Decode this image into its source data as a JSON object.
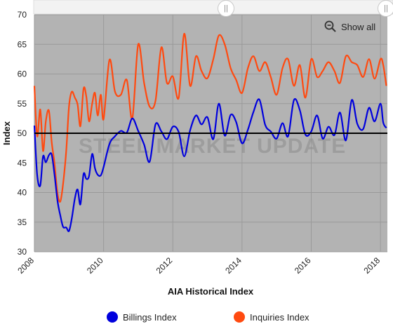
{
  "navigator": {
    "show_all_label": "Show all",
    "handle_glyph": "||"
  },
  "colors": {
    "plot_bg": "#b3b3b3",
    "billings": "#0000dd",
    "inquiries": "#ff4a10",
    "baseline": "#000000"
  },
  "watermark": "STEEL MARKET UPDATE",
  "chart_data": {
    "type": "line",
    "title": "",
    "xlabel": "AIA Historical Index",
    "ylabel": "Index",
    "xlim": [
      2008.0,
      2018.2
    ],
    "ylim": [
      30,
      70
    ],
    "xticks": [
      "2008",
      "2010",
      "2012",
      "2014",
      "2016",
      "2018"
    ],
    "yticks": [
      "30",
      "35",
      "40",
      "45",
      "50",
      "55",
      "60",
      "65",
      "70"
    ],
    "reference_line": 50,
    "grid": true,
    "legend_position": "bottom",
    "series": [
      {
        "name": "Billings Index",
        "color": "#0000dd",
        "x": [
          2008.0,
          2008.08,
          2008.17,
          2008.25,
          2008.33,
          2008.42,
          2008.5,
          2008.58,
          2008.67,
          2008.75,
          2008.83,
          2008.92,
          2009.0,
          2009.08,
          2009.17,
          2009.25,
          2009.33,
          2009.42,
          2009.5,
          2009.58,
          2009.67,
          2009.75,
          2009.83,
          2009.92,
          2010.0,
          2010.17,
          2010.33,
          2010.5,
          2010.67,
          2010.83,
          2011.0,
          2011.17,
          2011.33,
          2011.5,
          2011.67,
          2011.83,
          2012.0,
          2012.17,
          2012.33,
          2012.5,
          2012.67,
          2012.83,
          2013.0,
          2013.17,
          2013.33,
          2013.5,
          2013.67,
          2013.83,
          2014.0,
          2014.17,
          2014.33,
          2014.5,
          2014.67,
          2014.83,
          2015.0,
          2015.17,
          2015.33,
          2015.5,
          2015.67,
          2015.83,
          2016.0,
          2016.17,
          2016.33,
          2016.5,
          2016.67,
          2016.83,
          2017.0,
          2017.17,
          2017.33,
          2017.5,
          2017.67,
          2017.83,
          2018.0,
          2018.08,
          2018.17
        ],
        "values": [
          51.3,
          43.0,
          41.2,
          46.1,
          45.1,
          46.3,
          46.4,
          43.1,
          38.5,
          36.1,
          34.2,
          34.1,
          33.5,
          35.6,
          39.0,
          40.5,
          38.0,
          43.1,
          42.3,
          42.8,
          46.5,
          44.1,
          43.0,
          42.9,
          44.3,
          48.2,
          49.5,
          50.4,
          50.1,
          52.5,
          50.4,
          48.1,
          45.2,
          51.5,
          50.3,
          49.0,
          51.1,
          50.2,
          46.1,
          50.5,
          53.0,
          51.5,
          52.7,
          49.0,
          55.0,
          49.6,
          53.1,
          51.9,
          48.3,
          50.6,
          53.6,
          55.7,
          51.4,
          50.3,
          49.1,
          51.7,
          49.5,
          55.6,
          53.9,
          49.8,
          50.3,
          53.0,
          49.1,
          51.1,
          49.7,
          53.5,
          48.8,
          55.6,
          51.6,
          50.7,
          54.3,
          52.0,
          55.0,
          51.8,
          50.9
        ]
      },
      {
        "name": "Inquiries Index",
        "color": "#ff4a10",
        "x": [
          2008.0,
          2008.08,
          2008.17,
          2008.25,
          2008.33,
          2008.42,
          2008.5,
          2008.58,
          2008.67,
          2008.75,
          2008.83,
          2008.92,
          2009.0,
          2009.08,
          2009.17,
          2009.25,
          2009.33,
          2009.42,
          2009.5,
          2009.58,
          2009.67,
          2009.75,
          2009.83,
          2009.92,
          2010.0,
          2010.17,
          2010.33,
          2010.5,
          2010.67,
          2010.83,
          2011.0,
          2011.17,
          2011.33,
          2011.5,
          2011.67,
          2011.83,
          2012.0,
          2012.17,
          2012.33,
          2012.5,
          2012.67,
          2012.83,
          2013.0,
          2013.17,
          2013.33,
          2013.5,
          2013.67,
          2013.83,
          2014.0,
          2014.17,
          2014.33,
          2014.5,
          2014.67,
          2014.83,
          2015.0,
          2015.17,
          2015.33,
          2015.5,
          2015.67,
          2015.83,
          2016.0,
          2016.17,
          2016.33,
          2016.5,
          2016.67,
          2016.83,
          2017.0,
          2017.17,
          2017.33,
          2017.5,
          2017.67,
          2017.83,
          2018.0,
          2018.08,
          2018.17
        ],
        "values": [
          58.0,
          49.5,
          54.0,
          47.0,
          52.0,
          53.8,
          48.5,
          45.0,
          39.8,
          38.5,
          41.5,
          47.0,
          54.5,
          57.0,
          56.0,
          54.8,
          51.2,
          57.5,
          56.2,
          52.0,
          55.0,
          56.8,
          53.0,
          56.5,
          52.4,
          62.4,
          57.0,
          56.5,
          59.0,
          52.5,
          65.0,
          58.5,
          54.5,
          55.5,
          64.5,
          58.5,
          59.6,
          56.0,
          66.8,
          58.0,
          63.0,
          60.5,
          59.3,
          62.5,
          66.5,
          65.0,
          61.0,
          59.0,
          56.8,
          61.0,
          63.0,
          60.5,
          62.0,
          59.5,
          56.5,
          61.0,
          62.5,
          58.0,
          61.5,
          56.0,
          62.5,
          59.5,
          60.5,
          62.0,
          60.5,
          58.5,
          63.0,
          62.0,
          61.5,
          59.5,
          62.5,
          59.2,
          62.5,
          61.5,
          58.0
        ]
      }
    ]
  },
  "legend": [
    {
      "label": "Billings Index",
      "color": "#0000dd"
    },
    {
      "label": "Inquiries Index",
      "color": "#ff4a10"
    }
  ]
}
